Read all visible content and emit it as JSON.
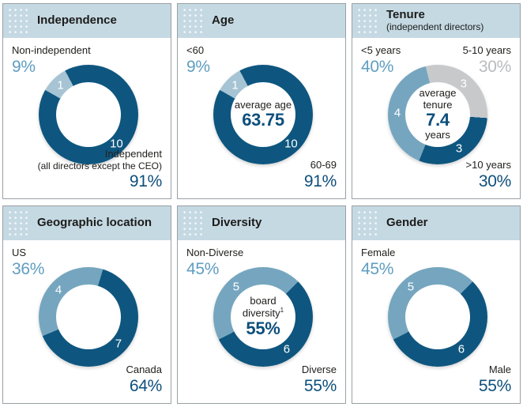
{
  "colors": {
    "dark": "#0e567f",
    "steel": "#76a6bf",
    "lightblue": "#a6c4d4",
    "gray": "#c7c9cb",
    "header_bg": "#c5d9e3",
    "pct_dark": "#0d4f7c",
    "pct_steel": "#5f9ec0",
    "pct_gray": "#b9bbbd"
  },
  "panels": [
    {
      "title": "Independence",
      "corner_tl": {
        "label": "Non-independent",
        "pct": "9%"
      },
      "corner_br": {
        "line1": "Independent",
        "line2": "(all directors except the CEO)",
        "pct": "91%"
      },
      "donut": {
        "from": 332,
        "segments": [
          {
            "value": "10",
            "color": "dark",
            "sweep": 327.6,
            "label_angle": 136
          },
          {
            "value": "1",
            "color": "lightblue",
            "sweep": 32.4,
            "label_angle": 316
          }
        ]
      }
    },
    {
      "title": "Age",
      "corner_tl": {
        "label": "<60",
        "pct": "9%"
      },
      "corner_br": {
        "line1": "60-69",
        "pct": "91%"
      },
      "center": {
        "label": "average age",
        "big": "63.75"
      },
      "donut": {
        "from": 332,
        "segments": [
          {
            "value": "10",
            "color": "dark",
            "sweep": 327.6,
            "label_angle": 136
          },
          {
            "value": "1",
            "color": "lightblue",
            "sweep": 32.4,
            "label_angle": 316
          }
        ]
      }
    },
    {
      "title": "Tenure",
      "subtitle": "(independent directors)",
      "corner_tl": {
        "label": "<5 years",
        "pct": "40%"
      },
      "corner_tr": {
        "label": "5-10 years",
        "pct": "30%"
      },
      "corner_br": {
        "line1": ">10 years",
        "pct": "30%"
      },
      "center": {
        "label": "average tenure",
        "big": "7.4",
        "label2": "years"
      },
      "donut": {
        "from": 346,
        "segments": [
          {
            "value": "3",
            "color": "gray",
            "sweep": 108,
            "label_angle": 40
          },
          {
            "value": "3",
            "color": "dark",
            "sweep": 108,
            "label_angle": 148
          },
          {
            "value": "4",
            "color": "steel",
            "sweep": 144,
            "label_angle": 272
          }
        ]
      }
    },
    {
      "title": "Geographic location",
      "corner_tl": {
        "label": "US",
        "pct": "36%"
      },
      "corner_br": {
        "line1": "Canada",
        "pct": "64%"
      },
      "donut": {
        "from": 17,
        "segments": [
          {
            "value": "7",
            "color": "dark",
            "sweep": 230.4,
            "label_angle": 132
          },
          {
            "value": "4",
            "color": "steel",
            "sweep": 129.6,
            "label_angle": 312
          }
        ]
      }
    },
    {
      "title": "Diversity",
      "corner_tl": {
        "label": "Non-Diverse",
        "pct": "45%"
      },
      "corner_br": {
        "line1": "Diverse",
        "pct": "55%"
      },
      "center": {
        "label": "board diversity",
        "sup": "1",
        "big": "55%"
      },
      "donut": {
        "from": 45,
        "segments": [
          {
            "value": "6",
            "color": "dark",
            "sweep": 198,
            "label_angle": 144
          },
          {
            "value": "5",
            "color": "steel",
            "sweep": 162,
            "label_angle": 318
          }
        ]
      }
    },
    {
      "title": "Gender",
      "corner_tl": {
        "label": "Female",
        "pct": "45%"
      },
      "corner_br": {
        "line1": "Male",
        "pct": "55%"
      },
      "donut": {
        "from": 45,
        "segments": [
          {
            "value": "6",
            "color": "dark",
            "sweep": 198,
            "label_angle": 144
          },
          {
            "value": "5",
            "color": "steel",
            "sweep": 162,
            "label_angle": 318
          }
        ]
      }
    }
  ],
  "chart_data": [
    {
      "type": "pie",
      "subtype": "donut",
      "title": "Independence",
      "slices": [
        {
          "label": "Independent (all directors except the CEO)",
          "count": 10,
          "pct": 91,
          "color": "#0e567f"
        },
        {
          "label": "Non-independent",
          "count": 1,
          "pct": 9,
          "color": "#a6c4d4"
        }
      ]
    },
    {
      "type": "pie",
      "subtype": "donut",
      "title": "Age",
      "center_annotation": "average age 63.75",
      "slices": [
        {
          "label": "60-69",
          "count": 10,
          "pct": 91,
          "color": "#0e567f"
        },
        {
          "label": "<60",
          "count": 1,
          "pct": 9,
          "color": "#a6c4d4"
        }
      ]
    },
    {
      "type": "pie",
      "subtype": "donut",
      "title": "Tenure (independent directors)",
      "center_annotation": "average tenure 7.4 years",
      "slices": [
        {
          "label": "<5 years",
          "count": 4,
          "pct": 40,
          "color": "#76a6bf"
        },
        {
          "label": "5-10 years",
          "count": 3,
          "pct": 30,
          "color": "#c7c9cb"
        },
        {
          "label": ">10 years",
          "count": 3,
          "pct": 30,
          "color": "#0e567f"
        }
      ]
    },
    {
      "type": "pie",
      "subtype": "donut",
      "title": "Geographic location",
      "slices": [
        {
          "label": "US",
          "count": 4,
          "pct": 36,
          "color": "#76a6bf"
        },
        {
          "label": "Canada",
          "count": 7,
          "pct": 64,
          "color": "#0e567f"
        }
      ]
    },
    {
      "type": "pie",
      "subtype": "donut",
      "title": "Diversity",
      "center_annotation": "board diversity(1) 55%",
      "slices": [
        {
          "label": "Non-Diverse",
          "count": 5,
          "pct": 45,
          "color": "#76a6bf"
        },
        {
          "label": "Diverse",
          "count": 6,
          "pct": 55,
          "color": "#0e567f"
        }
      ]
    },
    {
      "type": "pie",
      "subtype": "donut",
      "title": "Gender",
      "slices": [
        {
          "label": "Female",
          "count": 5,
          "pct": 45,
          "color": "#76a6bf"
        },
        {
          "label": "Male",
          "count": 6,
          "pct": 55,
          "color": "#0e567f"
        }
      ]
    }
  ]
}
